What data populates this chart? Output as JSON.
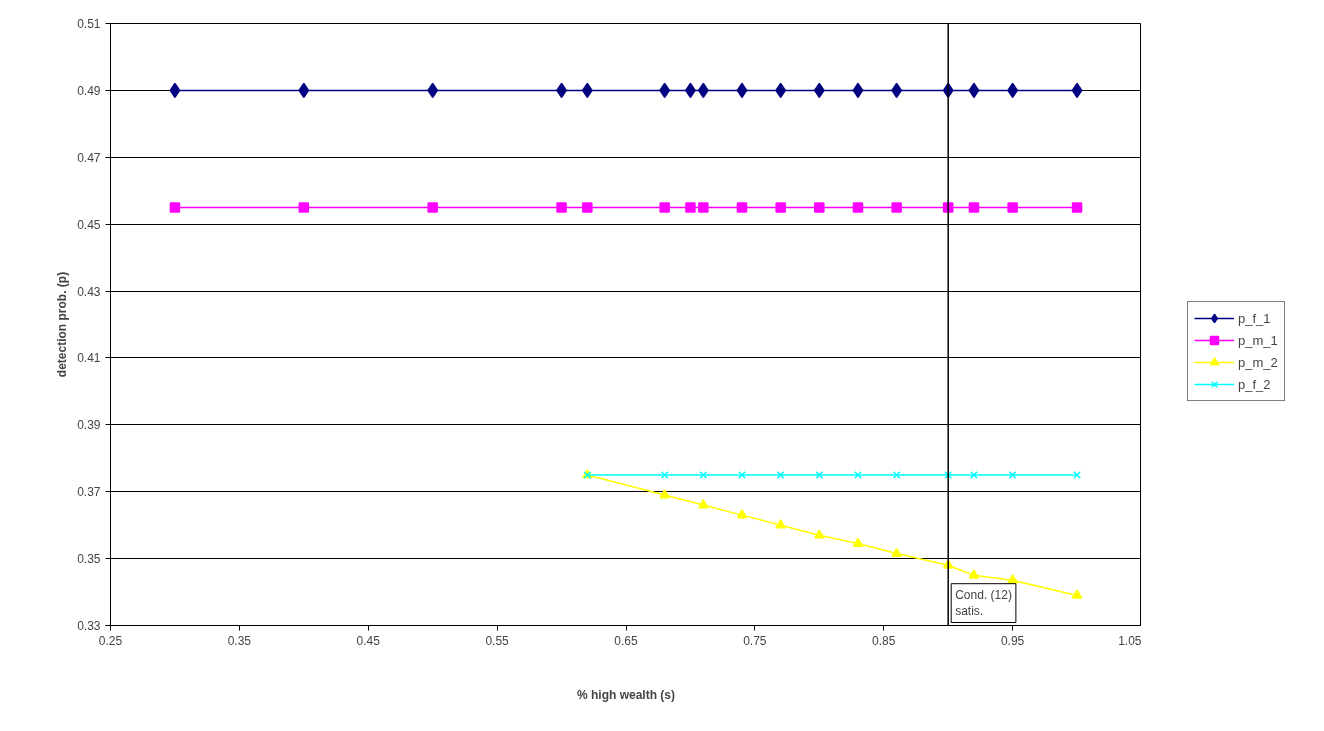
{
  "chart_data": {
    "type": "line",
    "xlabel": "% high wealth (s)",
    "ylabel": "detection prob. (p)",
    "xlim": [
      0.25,
      1.05
    ],
    "xticks": [
      0.25,
      0.35,
      0.45,
      0.55,
      0.65,
      0.75,
      0.85,
      0.95,
      1.05
    ],
    "ylim": [
      0.33,
      0.51
    ],
    "yticks": [
      0.33,
      0.35,
      0.37,
      0.39,
      0.41,
      0.43,
      0.45,
      0.47,
      0.49,
      0.51
    ],
    "grid": "y",
    "legend": "right",
    "series": [
      {
        "name": "p_f_1",
        "color": "#000080",
        "marker": "diamond",
        "x": [
          0.3,
          0.4,
          0.5,
          0.6,
          0.62,
          0.68,
          0.7,
          0.71,
          0.74,
          0.77,
          0.8,
          0.83,
          0.86,
          0.9,
          0.92,
          0.95,
          1.0
        ],
        "values": [
          0.49,
          0.49,
          0.49,
          0.49,
          0.49,
          0.49,
          0.49,
          0.49,
          0.49,
          0.49,
          0.49,
          0.49,
          0.49,
          0.49,
          0.49,
          0.49,
          0.49
        ]
      },
      {
        "name": "p_m_1",
        "color": "#ff00ff",
        "marker": "square",
        "x": [
          0.3,
          0.4,
          0.5,
          0.6,
          0.62,
          0.68,
          0.7,
          0.71,
          0.74,
          0.77,
          0.8,
          0.83,
          0.86,
          0.9,
          0.92,
          0.95,
          1.0
        ],
        "values": [
          0.455,
          0.455,
          0.455,
          0.455,
          0.455,
          0.455,
          0.455,
          0.455,
          0.455,
          0.455,
          0.455,
          0.455,
          0.455,
          0.455,
          0.455,
          0.455,
          0.455
        ]
      },
      {
        "name": "p_m_2",
        "color": "#ffff00",
        "marker": "triangle",
        "x": [
          0.62,
          0.68,
          0.71,
          0.74,
          0.77,
          0.8,
          0.83,
          0.86,
          0.9,
          0.92,
          0.95,
          1.0
        ],
        "values": [
          0.375,
          0.369,
          0.366,
          0.363,
          0.36,
          0.357,
          0.3545,
          0.3515,
          0.348,
          0.345,
          0.3435,
          0.339
        ]
      },
      {
        "name": "p_f_2",
        "color": "#00ffff",
        "marker": "cross",
        "x": [
          0.62,
          0.68,
          0.71,
          0.74,
          0.77,
          0.8,
          0.83,
          0.86,
          0.9,
          0.92,
          0.95,
          1.0
        ],
        "values": [
          0.375,
          0.375,
          0.375,
          0.375,
          0.375,
          0.375,
          0.375,
          0.375,
          0.375,
          0.375,
          0.375,
          0.375
        ]
      }
    ],
    "ref_lines": [
      {
        "axis": "x",
        "value": 0.9,
        "label": "Cond. (12)\nsatis.",
        "color": "#000000"
      }
    ]
  }
}
